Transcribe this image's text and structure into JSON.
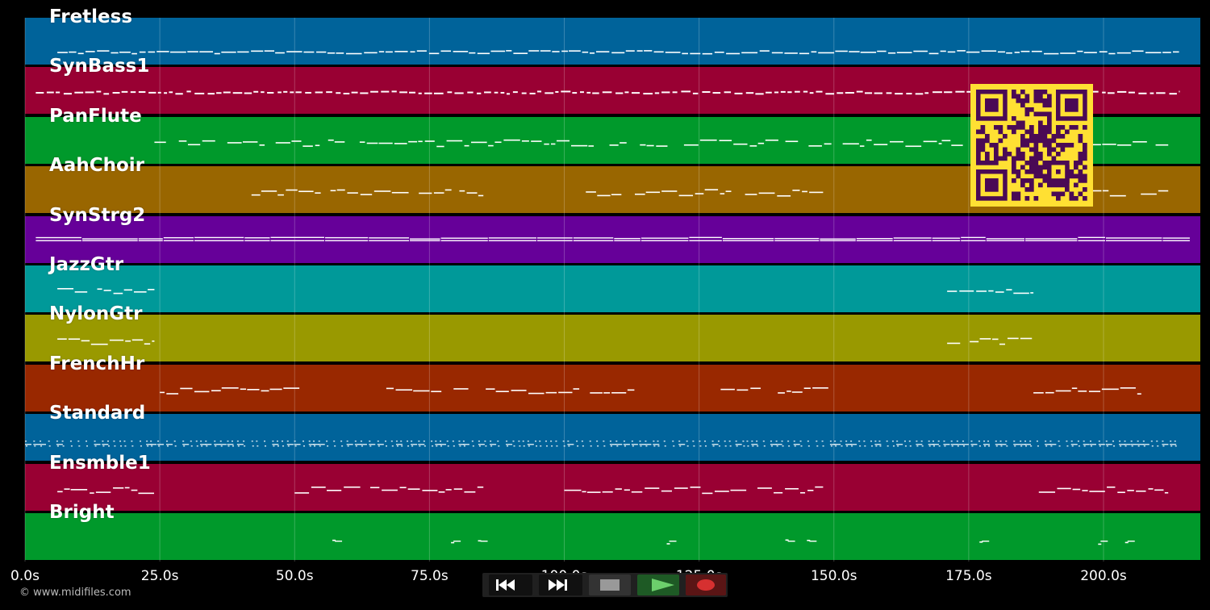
{
  "window": {
    "title": ""
  },
  "timeline": {
    "ticks": [
      "0.0s",
      "25.0s",
      "50.0s",
      "75.0s",
      "100.0s",
      "125.0s",
      "150.0s",
      "175.0s",
      "200.0s"
    ],
    "tick_seconds": [
      0,
      25,
      50,
      75,
      100,
      125,
      150,
      175,
      200
    ],
    "duration_seconds": 218
  },
  "tracks": [
    {
      "name": "Fretless",
      "color": "#00639a",
      "pattern": "line-dense",
      "segments": [
        [
          6,
          214
        ]
      ]
    },
    {
      "name": "SynBass1",
      "color": "#990033",
      "pattern": "dashes",
      "segments": [
        [
          2,
          214
        ]
      ]
    },
    {
      "name": "PanFlute",
      "color": "#00992b",
      "pattern": "melody",
      "segments": [
        [
          24,
          170
        ],
        [
          170,
          212
        ]
      ]
    },
    {
      "name": "AahChoir",
      "color": "#996600",
      "pattern": "melody",
      "segments": [
        [
          42,
          85
        ],
        [
          104,
          148
        ],
        [
          180,
          212
        ]
      ]
    },
    {
      "name": "SynStrg2",
      "color": "#660099",
      "pattern": "double",
      "segments": [
        [
          2,
          216
        ]
      ]
    },
    {
      "name": "JazzGtr",
      "color": "#009999",
      "pattern": "melody",
      "segments": [
        [
          6,
          24
        ],
        [
          171,
          187
        ]
      ]
    },
    {
      "name": "NylonGtr",
      "color": "#999900",
      "pattern": "melody",
      "segments": [
        [
          6,
          24
        ],
        [
          171,
          187
        ]
      ]
    },
    {
      "name": "FrenchHr",
      "color": "#992800",
      "pattern": "melody",
      "segments": [
        [
          25,
          51
        ],
        [
          67,
          113
        ],
        [
          129,
          149
        ],
        [
          187,
          207
        ]
      ]
    },
    {
      "name": "Standard",
      "color": "#00639a",
      "pattern": "drums",
      "segments": [
        [
          0,
          214
        ]
      ]
    },
    {
      "name": "Ensmble1",
      "color": "#990033",
      "pattern": "melody",
      "segments": [
        [
          6,
          24
        ],
        [
          50,
          85
        ],
        [
          100,
          148
        ],
        [
          188,
          212
        ]
      ]
    },
    {
      "name": "Bright",
      "color": "#00992b",
      "pattern": "sparse",
      "segments": [
        [
          57,
          59
        ],
        [
          79,
          80
        ],
        [
          84,
          85
        ],
        [
          119,
          121
        ],
        [
          141,
          142
        ],
        [
          145,
          146
        ],
        [
          177,
          179
        ],
        [
          199,
          200
        ],
        [
          204,
          205
        ]
      ]
    }
  ],
  "controls": {
    "rewind": "rewind-icon",
    "fast_forward": "fast-forward-icon",
    "stop": "stop-icon",
    "play": "play-icon",
    "record": "record-icon"
  },
  "qr": {
    "color": "#ffe033",
    "fg": "#4a0a55"
  },
  "credit": "© www.midifiles.com"
}
